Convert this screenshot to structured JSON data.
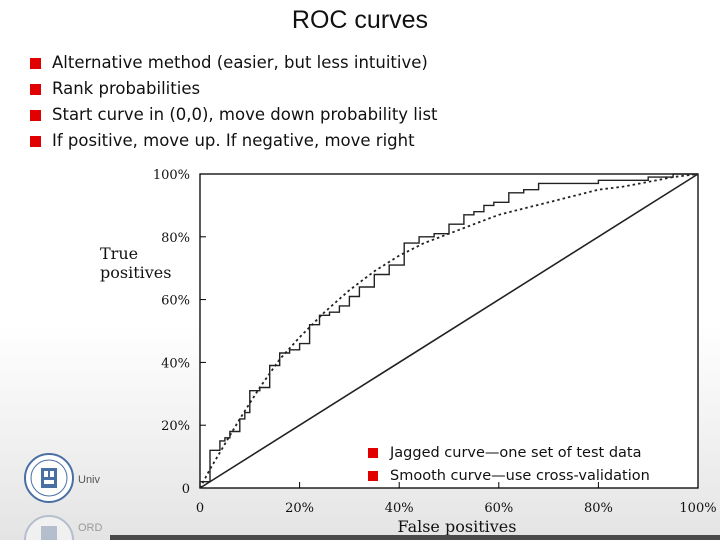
{
  "slide": {
    "title": "ROC curves",
    "bullets": [
      "Alternative method (easier, but less intuitive)",
      "Rank probabilities",
      "Start curve in (0,0), move down probability list",
      "If positive, move up. If negative, move right"
    ],
    "legend_bullets": [
      "Jagged curve—one set of test data",
      "Smooth curve—use cross-validation"
    ],
    "logo_text": "Univ",
    "logo_text_2": "ORD"
  },
  "colors": {
    "bullet": "#e00000",
    "curve": "#222222",
    "axis": "#000000"
  },
  "chart_data": {
    "type": "line",
    "xlabel": "False positives",
    "ylabel_lines": [
      "True",
      "positives"
    ],
    "xlim": [
      0,
      100
    ],
    "ylim": [
      0,
      100
    ],
    "x_ticks": [
      "0",
      "20%",
      "40%",
      "60%",
      "80%",
      "100%"
    ],
    "y_ticks": [
      "0",
      "20%",
      "40%",
      "60%",
      "80%",
      "100%"
    ],
    "series": [
      {
        "style": "jagged-solid",
        "x": [
          0,
          0,
          2,
          2,
          4,
          4,
          5,
          5,
          6,
          6,
          8,
          8,
          9,
          9,
          10,
          10,
          12,
          12,
          14,
          14,
          16,
          16,
          18,
          18,
          20,
          20,
          22,
          22,
          24,
          24,
          26,
          26,
          28,
          28,
          30,
          30,
          32,
          32,
          35,
          35,
          38,
          38,
          41,
          41,
          44,
          44,
          47,
          47,
          50,
          50,
          53,
          53,
          55,
          55,
          57,
          57,
          59,
          59,
          62,
          62,
          65,
          65,
          68,
          68,
          72,
          72,
          76,
          76,
          80,
          80,
          85,
          85,
          90,
          90,
          95,
          95,
          100
        ],
        "y": [
          0,
          2,
          2,
          12,
          12,
          15,
          15,
          16,
          16,
          18,
          18,
          22,
          22,
          24,
          24,
          31,
          31,
          32,
          32,
          39,
          39,
          43,
          43,
          44,
          44,
          46,
          46,
          52,
          52,
          55,
          55,
          56,
          56,
          58,
          58,
          61,
          61,
          64,
          64,
          68,
          68,
          71,
          71,
          78,
          78,
          80,
          80,
          81,
          81,
          84,
          84,
          87,
          87,
          88,
          88,
          90,
          90,
          91,
          91,
          94,
          94,
          95,
          95,
          97,
          97,
          97,
          97,
          97,
          97,
          98,
          98,
          98,
          98,
          99,
          99,
          100,
          100
        ]
      },
      {
        "style": "smooth-dotted",
        "x": [
          0,
          2,
          5,
          8,
          12,
          16,
          20,
          25,
          30,
          35,
          40,
          45,
          50,
          55,
          60,
          65,
          70,
          75,
          80,
          85,
          90,
          95,
          100
        ],
        "y": [
          0,
          6,
          14,
          22,
          32,
          41,
          48,
          56,
          63,
          69,
          74,
          78,
          81,
          84,
          87,
          89,
          91,
          93,
          95,
          96,
          97.5,
          99,
          100
        ]
      },
      {
        "style": "diagonal-solid",
        "x": [
          0,
          100
        ],
        "y": [
          0,
          100
        ]
      }
    ]
  }
}
